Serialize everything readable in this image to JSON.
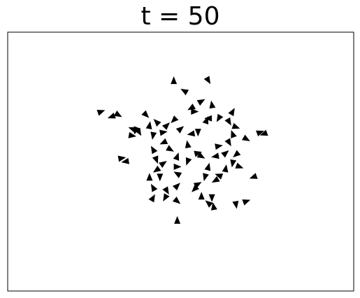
{
  "chart_data": {
    "type": "scatter",
    "title": "t = 50",
    "xlabel": "",
    "ylabel": "",
    "xlim": [
      0,
      10
    ],
    "ylim": [
      0,
      7.5
    ],
    "grid": false,
    "ticks": false,
    "marker": "triangle",
    "marker_color": "#000000",
    "points": [
      {
        "x": 2.7,
        "y": 5.2,
        "dir": 20
      },
      {
        "x": 3.2,
        "y": 5.1,
        "dir": -30
      },
      {
        "x": 3.0,
        "y": 5.05,
        "dir": 200
      },
      {
        "x": 4.8,
        "y": 6.1,
        "dir": 90
      },
      {
        "x": 5.8,
        "y": 6.1,
        "dir": -60
      },
      {
        "x": 5.1,
        "y": 5.8,
        "dir": 150
      },
      {
        "x": 5.6,
        "y": 5.5,
        "dir": 30
      },
      {
        "x": 5.3,
        "y": 5.3,
        "dir": 210
      },
      {
        "x": 5.4,
        "y": 5.2,
        "dir": 0
      },
      {
        "x": 5.9,
        "y": 5.4,
        "dir": 100
      },
      {
        "x": 5.8,
        "y": 5.0,
        "dir": 180
      },
      {
        "x": 6.1,
        "y": 5.0,
        "dir": -120
      },
      {
        "x": 6.5,
        "y": 5.2,
        "dir": 60
      },
      {
        "x": 6.4,
        "y": 4.9,
        "dir": 300
      },
      {
        "x": 7.3,
        "y": 4.6,
        "dir": 20
      },
      {
        "x": 7.4,
        "y": 4.55,
        "dir": 200
      },
      {
        "x": 6.9,
        "y": 4.4,
        "dir": 330
      },
      {
        "x": 4.0,
        "y": 5.1,
        "dir": -45
      },
      {
        "x": 4.3,
        "y": 4.9,
        "dir": 135
      },
      {
        "x": 4.6,
        "y": 4.8,
        "dir": 45
      },
      {
        "x": 4.8,
        "y": 4.95,
        "dir": 225
      },
      {
        "x": 4.5,
        "y": 4.6,
        "dir": 10
      },
      {
        "x": 4.2,
        "y": 4.5,
        "dir": 260
      },
      {
        "x": 4.1,
        "y": 4.8,
        "dir": 80
      },
      {
        "x": 3.8,
        "y": 4.6,
        "dir": 300
      },
      {
        "x": 3.6,
        "y": 4.7,
        "dir": 160
      },
      {
        "x": 3.6,
        "y": 4.5,
        "dir": -10
      },
      {
        "x": 5.0,
        "y": 4.7,
        "dir": 40
      },
      {
        "x": 5.3,
        "y": 4.55,
        "dir": 190
      },
      {
        "x": 5.5,
        "y": 4.6,
        "dir": 270
      },
      {
        "x": 5.2,
        "y": 4.25,
        "dir": 100
      },
      {
        "x": 4.7,
        "y": 4.1,
        "dir": 330
      },
      {
        "x": 4.9,
        "y": 3.9,
        "dir": 70
      },
      {
        "x": 5.2,
        "y": 3.75,
        "dir": 250
      },
      {
        "x": 5.5,
        "y": 4.0,
        "dir": 15
      },
      {
        "x": 4.5,
        "y": 4.3,
        "dir": 205
      },
      {
        "x": 4.2,
        "y": 4.1,
        "dir": 120
      },
      {
        "x": 4.3,
        "y": 3.8,
        "dir": -70
      },
      {
        "x": 4.5,
        "y": 3.7,
        "dir": 35
      },
      {
        "x": 4.3,
        "y": 3.5,
        "dir": 215
      },
      {
        "x": 4.1,
        "y": 3.3,
        "dir": 90
      },
      {
        "x": 4.4,
        "y": 3.3,
        "dir": 270
      },
      {
        "x": 4.9,
        "y": 3.6,
        "dir": 0
      },
      {
        "x": 4.9,
        "y": 3.4,
        "dir": 150
      },
      {
        "x": 5.6,
        "y": 3.9,
        "dir": -30
      },
      {
        "x": 5.8,
        "y": 3.6,
        "dir": 75
      },
      {
        "x": 5.7,
        "y": 3.3,
        "dir": 255
      },
      {
        "x": 6.0,
        "y": 3.9,
        "dir": 190
      },
      {
        "x": 6.1,
        "y": 4.2,
        "dir": 10
      },
      {
        "x": 6.4,
        "y": 4.3,
        "dir": 300
      },
      {
        "x": 6.5,
        "y": 4.55,
        "dir": 110
      },
      {
        "x": 6.3,
        "y": 4.0,
        "dir": 40
      },
      {
        "x": 6.6,
        "y": 3.95,
        "dir": 220
      },
      {
        "x": 6.3,
        "y": 3.55,
        "dir": 80
      },
      {
        "x": 6.5,
        "y": 3.7,
        "dir": 260
      },
      {
        "x": 6.7,
        "y": 3.6,
        "dir": -20
      },
      {
        "x": 6.1,
        "y": 3.35,
        "dir": 160
      },
      {
        "x": 5.5,
        "y": 3.1,
        "dir": 30
      },
      {
        "x": 6.0,
        "y": 3.2,
        "dir": 210
      },
      {
        "x": 4.2,
        "y": 3.0,
        "dir": 120
      },
      {
        "x": 4.6,
        "y": 2.9,
        "dir": 300
      },
      {
        "x": 4.9,
        "y": 3.05,
        "dir": 45
      },
      {
        "x": 5.4,
        "y": 2.95,
        "dir": 225
      },
      {
        "x": 5.6,
        "y": 2.75,
        "dir": 90
      },
      {
        "x": 5.9,
        "y": 2.7,
        "dir": 270
      },
      {
        "x": 3.3,
        "y": 3.85,
        "dir": 10
      },
      {
        "x": 3.4,
        "y": 3.75,
        "dir": 190
      },
      {
        "x": 4.2,
        "y": 2.7,
        "dir": 60
      },
      {
        "x": 4.55,
        "y": 2.7,
        "dir": 240
      },
      {
        "x": 4.9,
        "y": 2.6,
        "dir": -40
      },
      {
        "x": 5.8,
        "y": 2.55,
        "dir": 140
      },
      {
        "x": 5.95,
        "y": 2.45,
        "dir": 100
      },
      {
        "x": 6.6,
        "y": 2.5,
        "dir": 280
      },
      {
        "x": 6.9,
        "y": 2.6,
        "dir": 20
      },
      {
        "x": 7.1,
        "y": 3.3,
        "dir": 200
      },
      {
        "x": 4.9,
        "y": 2.05,
        "dir": 90
      },
      {
        "x": 3.7,
        "y": 4.65,
        "dir": 250
      },
      {
        "x": 5.75,
        "y": 4.95,
        "dir": 70
      },
      {
        "x": 6.6,
        "y": 4.75,
        "dir": 340
      }
    ]
  }
}
